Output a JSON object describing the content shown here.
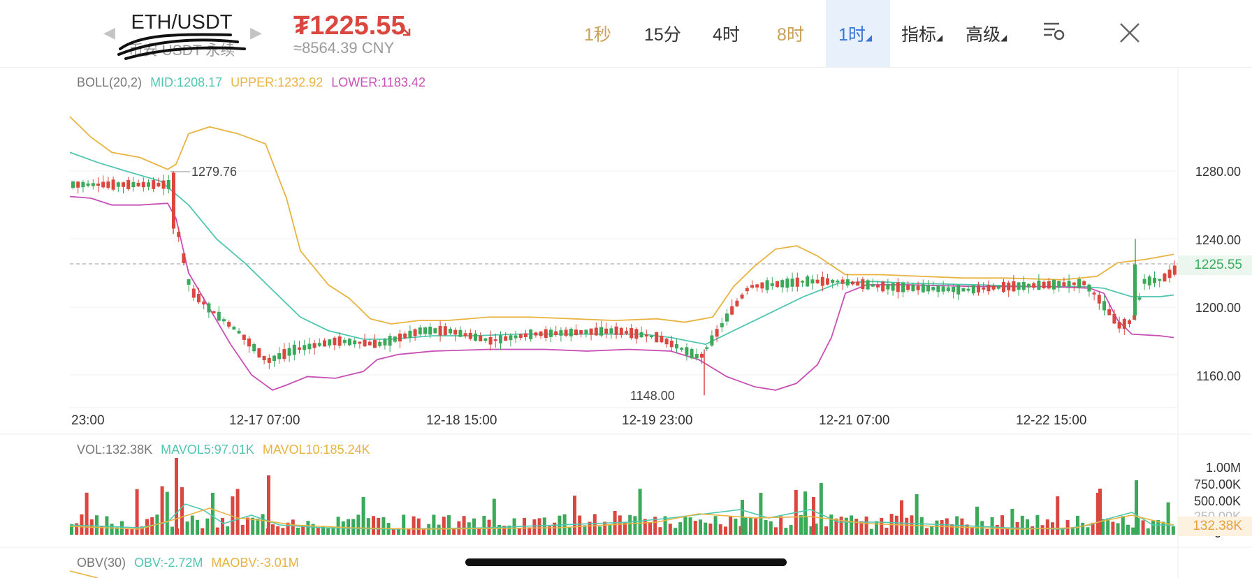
{
  "header": {
    "pair": "ETH/USDT",
    "sub": "币安 USDT 永续",
    "price": "₮1225.55",
    "price_cny": "≈8564.39 CNY",
    "tabs": [
      {
        "label": "1秒",
        "color": "#c9a15a"
      },
      {
        "label": "15分",
        "color": "#333333"
      },
      {
        "label": "4时",
        "color": "#333333"
      },
      {
        "label": "8时",
        "color": "#c9a15a"
      },
      {
        "label": "1时",
        "color": "#3a74d6",
        "selected": true
      },
      {
        "label": "指标",
        "color": "#333333"
      },
      {
        "label": "高级",
        "color": "#333333"
      }
    ]
  },
  "boll": {
    "label": "BOLL(20,2)",
    "mid": "MID:1208.17",
    "upper": "UPPER:1232.92",
    "lower": "LOWER:1183.42",
    "colors": {
      "mid": "#4fc7b0",
      "upper": "#e8b341",
      "lower": "#c84fb5"
    }
  },
  "vol": {
    "label": "VOL:132.38K",
    "mavol5": "MAVOL5:97.01K",
    "mavol10": "MAVOL10:185.24K"
  },
  "obv": {
    "label": "OBV(30)",
    "obv": "OBV:-2.72M",
    "maobv": "MAOBV:-3.01M"
  },
  "price_axis": [
    "1280.00",
    "1240.00",
    "1200.00",
    "1160.00"
  ],
  "current_price": "1225.55",
  "high_mark": "1279.76",
  "low_mark": "1148.00",
  "time_axis": [
    "23:00",
    "12-17 07:00",
    "12-18 15:00",
    "12-19 23:00",
    "12-21 07:00",
    "12-22 15:00"
  ],
  "vol_axis": [
    "1.00M",
    "750.00K",
    "500.00K",
    "250.00K",
    "0"
  ],
  "vol_current": "132.38K",
  "colors": {
    "up": "#3aaa5a",
    "down": "#d9473f",
    "accent": "#3a74d6",
    "gold": "#c9a15a"
  }
}
